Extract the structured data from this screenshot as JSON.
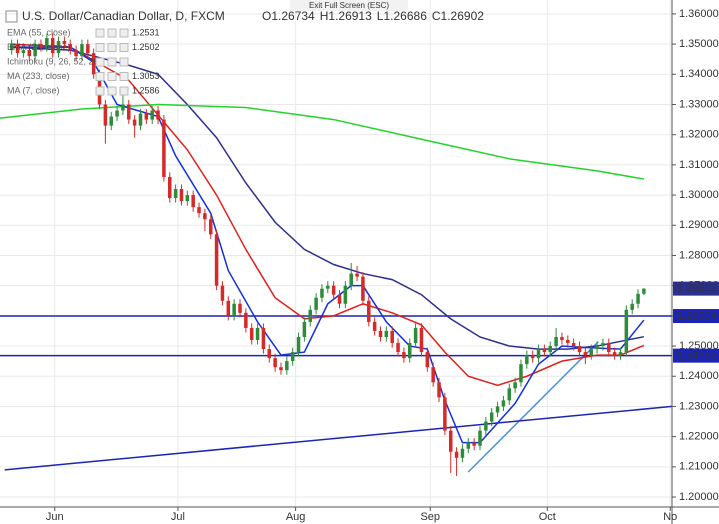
{
  "toolbar": {
    "exit": "Exit Full Screen (ESC)"
  },
  "chart_data": {
    "type": "candlestick",
    "title": "U.S. Dollar/Canadian Dollar, D, FXCM",
    "ohlc_prefixes": [
      "O",
      "H",
      "L",
      "C"
    ],
    "up_color": "#2e8b3a",
    "down_color": "#d42a2a",
    "candles": [
      [
        1.348,
        1.3515,
        1.3465,
        1.35
      ],
      [
        1.35,
        1.3515,
        1.3455,
        1.347
      ],
      [
        1.347,
        1.3495,
        1.3455,
        1.348
      ],
      [
        1.348,
        1.3495,
        1.3445,
        1.346
      ],
      [
        1.346,
        1.3515,
        1.3445,
        1.35
      ],
      [
        1.35,
        1.3515,
        1.3475,
        1.349
      ],
      [
        1.349,
        1.3535,
        1.3475,
        1.352
      ],
      [
        1.352,
        1.3535,
        1.3455,
        1.347
      ],
      [
        1.347,
        1.3525,
        1.3455,
        1.351
      ],
      [
        1.351,
        1.3525,
        1.3485,
        1.35
      ],
      [
        1.35,
        1.3515,
        1.3465,
        1.348
      ],
      [
        1.348,
        1.3495,
        1.3445,
        1.346
      ],
      [
        1.346,
        1.3515,
        1.3445,
        1.35
      ],
      [
        1.35,
        1.3515,
        1.3455,
        1.347
      ],
      [
        1.347,
        1.3485,
        1.3385,
        1.34
      ],
      [
        1.34,
        1.3415,
        1.3285,
        1.33
      ],
      [
        1.33,
        1.3315,
        1.317,
        1.323
      ],
      [
        1.323,
        1.3275,
        1.3215,
        1.326
      ],
      [
        1.326,
        1.3295,
        1.3245,
        1.328
      ],
      [
        1.328,
        1.333,
        1.3265,
        1.33
      ],
      [
        1.33,
        1.3315,
        1.3235,
        1.325
      ],
      [
        1.325,
        1.3265,
        1.319,
        1.323
      ],
      [
        1.323,
        1.3285,
        1.3215,
        1.327
      ],
      [
        1.327,
        1.3285,
        1.3235,
        1.325
      ],
      [
        1.325,
        1.3295,
        1.3235,
        1.328
      ],
      [
        1.328,
        1.3295,
        1.3235,
        1.325
      ],
      [
        1.325,
        1.3265,
        1.3045,
        1.306
      ],
      [
        1.306,
        1.3075,
        1.2975,
        1.299
      ],
      [
        1.299,
        1.3035,
        1.2975,
        1.302
      ],
      [
        1.302,
        1.3035,
        1.2965,
        1.298
      ],
      [
        1.298,
        1.3015,
        1.2965,
        1.3
      ],
      [
        1.3,
        1.3015,
        1.2945,
        1.296
      ],
      [
        1.296,
        1.2975,
        1.2925,
        1.294
      ],
      [
        1.294,
        1.2955,
        1.288,
        1.292
      ],
      [
        1.292,
        1.2935,
        1.2855,
        1.287
      ],
      [
        1.287,
        1.2885,
        1.2685,
        1.27
      ],
      [
        1.27,
        1.2715,
        1.2635,
        1.265
      ],
      [
        1.265,
        1.2665,
        1.2585,
        1.26
      ],
      [
        1.26,
        1.2655,
        1.2585,
        1.264
      ],
      [
        1.264,
        1.2655,
        1.2595,
        1.261
      ],
      [
        1.261,
        1.2625,
        1.2545,
        1.256
      ],
      [
        1.256,
        1.2575,
        1.2505,
        1.252
      ],
      [
        1.252,
        1.2575,
        1.2505,
        1.256
      ],
      [
        1.256,
        1.2575,
        1.2475,
        1.249
      ],
      [
        1.249,
        1.2505,
        1.2445,
        1.246
      ],
      [
        1.246,
        1.2475,
        1.2415,
        1.243
      ],
      [
        1.243,
        1.2445,
        1.2405,
        1.242
      ],
      [
        1.242,
        1.2465,
        1.2405,
        1.245
      ],
      [
        1.245,
        1.2495,
        1.2435,
        1.248
      ],
      [
        1.248,
        1.2545,
        1.2465,
        1.253
      ],
      [
        1.253,
        1.2595,
        1.2515,
        1.258
      ],
      [
        1.258,
        1.2635,
        1.2565,
        1.262
      ],
      [
        1.262,
        1.2675,
        1.2605,
        1.266
      ],
      [
        1.266,
        1.2705,
        1.2645,
        1.269
      ],
      [
        1.269,
        1.2715,
        1.2675,
        1.27
      ],
      [
        1.27,
        1.2715,
        1.2655,
        1.267
      ],
      [
        1.267,
        1.2685,
        1.2625,
        1.264
      ],
      [
        1.264,
        1.2715,
        1.2625,
        1.27
      ],
      [
        1.27,
        1.2775,
        1.2685,
        1.274
      ],
      [
        1.274,
        1.2765,
        1.2715,
        1.273
      ],
      [
        1.273,
        1.2745,
        1.2635,
        1.265
      ],
      [
        1.265,
        1.2665,
        1.2565,
        1.258
      ],
      [
        1.258,
        1.2595,
        1.2535,
        1.255
      ],
      [
        1.255,
        1.2565,
        1.2515,
        1.253
      ],
      [
        1.253,
        1.2565,
        1.2515,
        1.255
      ],
      [
        1.255,
        1.2565,
        1.2495,
        1.251
      ],
      [
        1.251,
        1.2525,
        1.2465,
        1.248
      ],
      [
        1.248,
        1.2495,
        1.2445,
        1.246
      ],
      [
        1.246,
        1.2525,
        1.2445,
        1.251
      ],
      [
        1.251,
        1.2575,
        1.2495,
        1.256
      ],
      [
        1.256,
        1.2575,
        1.2465,
        1.248
      ],
      [
        1.248,
        1.2495,
        1.2415,
        1.243
      ],
      [
        1.243,
        1.2445,
        1.2365,
        1.238
      ],
      [
        1.238,
        1.2395,
        1.2315,
        1.233
      ],
      [
        1.233,
        1.2345,
        1.2205,
        1.222
      ],
      [
        1.222,
        1.2235,
        1.208,
        1.215
      ],
      [
        1.215,
        1.2165,
        1.207,
        1.213
      ],
      [
        1.213,
        1.2175,
        1.2115,
        1.216
      ],
      [
        1.216,
        1.2195,
        1.2145,
        1.218
      ],
      [
        1.218,
        1.2195,
        1.2155,
        1.217
      ],
      [
        1.217,
        1.2235,
        1.2155,
        1.222
      ],
      [
        1.222,
        1.2265,
        1.2205,
        1.225
      ],
      [
        1.225,
        1.2295,
        1.2235,
        1.228
      ],
      [
        1.228,
        1.2315,
        1.2265,
        1.23
      ],
      [
        1.23,
        1.2335,
        1.2285,
        1.232
      ],
      [
        1.232,
        1.2375,
        1.2305,
        1.236
      ],
      [
        1.236,
        1.2395,
        1.2345,
        1.238
      ],
      [
        1.238,
        1.2455,
        1.2365,
        1.244
      ],
      [
        1.244,
        1.2485,
        1.2425,
        1.247
      ],
      [
        1.247,
        1.2485,
        1.2445,
        1.246
      ],
      [
        1.246,
        1.2505,
        1.2445,
        1.249
      ],
      [
        1.249,
        1.2505,
        1.2465,
        1.248
      ],
      [
        1.248,
        1.2515,
        1.2465,
        1.25
      ],
      [
        1.25,
        1.256,
        1.2485,
        1.253
      ],
      [
        1.253,
        1.2545,
        1.2505,
        1.252
      ],
      [
        1.252,
        1.2535,
        1.2495,
        1.251
      ],
      [
        1.251,
        1.2525,
        1.2485,
        1.25
      ],
      [
        1.25,
        1.2515,
        1.2465,
        1.248
      ],
      [
        1.248,
        1.2495,
        1.244,
        1.247
      ],
      [
        1.247,
        1.2505,
        1.2455,
        1.249
      ],
      [
        1.249,
        1.2515,
        1.2475,
        1.25
      ],
      [
        1.25,
        1.2525,
        1.2485,
        1.251
      ],
      [
        1.251,
        1.2525,
        1.2465,
        1.248
      ],
      [
        1.248,
        1.2495,
        1.2455,
        1.247
      ],
      [
        1.247,
        1.2495,
        1.2455,
        1.248
      ],
      [
        1.248,
        1.2635,
        1.2465,
        1.262
      ],
      [
        1.262,
        1.2655,
        1.2605,
        1.264
      ],
      [
        1.264,
        1.2688,
        1.2625,
        1.2673
      ],
      [
        1.26734,
        1.26913,
        1.26686,
        1.26902
      ]
    ],
    "series": [
      {
        "name": "EMA (55, close)",
        "color": "#2b2f8f",
        "x": [
          0,
          10,
          20,
          25,
          30,
          35,
          40,
          45,
          50,
          55,
          60,
          65,
          70,
          75,
          80,
          85,
          90,
          95,
          100,
          108
        ],
        "values": [
          1.349,
          1.348,
          1.343,
          1.34,
          1.33,
          1.319,
          1.304,
          1.291,
          1.282,
          1.277,
          1.274,
          1.272,
          1.267,
          1.259,
          1.253,
          1.25,
          1.249,
          1.249,
          1.25,
          1.2531
        ]
      },
      {
        "name": "EMA (21, close)",
        "color": "#e0201b",
        "x": [
          0,
          10,
          20,
          30,
          35,
          40,
          45,
          50,
          55,
          60,
          65,
          70,
          74,
          78,
          83,
          88,
          94,
          100,
          104,
          108
        ],
        "values": [
          1.35,
          1.349,
          1.338,
          1.315,
          1.3,
          1.282,
          1.266,
          1.259,
          1.26,
          1.264,
          1.261,
          1.257,
          1.248,
          1.24,
          1.237,
          1.24,
          1.245,
          1.247,
          1.247,
          1.2502
        ]
      },
      {
        "name": "MA (233, close)",
        "color": "#22d42a",
        "x": [
          -2,
          12,
          25,
          40,
          55,
          70,
          85,
          100,
          108
        ],
        "values": [
          1.3255,
          1.3285,
          1.33,
          1.329,
          1.325,
          1.3185,
          1.312,
          1.308,
          1.3053
        ]
      },
      {
        "name": "MA (7, close)",
        "color": "#1230e0",
        "x": [
          0,
          10,
          14,
          18,
          25,
          28,
          34,
          37,
          42,
          46,
          50,
          54,
          58,
          60,
          64,
          68,
          71,
          74,
          77,
          80,
          86,
          90,
          94,
          98,
          104,
          108
        ],
        "values": [
          1.349,
          1.349,
          1.344,
          1.33,
          1.326,
          1.313,
          1.294,
          1.275,
          1.258,
          1.247,
          1.248,
          1.264,
          1.27,
          1.27,
          1.258,
          1.25,
          1.249,
          1.232,
          1.218,
          1.218,
          1.231,
          1.244,
          1.25,
          1.2495,
          1.249,
          1.2586
        ]
      }
    ],
    "studies": [
      "Ichimoku (9, 26, 52, 26)"
    ],
    "trendlines": [
      {
        "color": "#4a8fdc",
        "x": [
          78,
          100.2
        ],
        "values": [
          1.2083,
          1.2514
        ]
      },
      {
        "color": "#1c24b8",
        "x": [
          -1.2,
          120.9
        ],
        "values": [
          1.209,
          1.2315
        ]
      }
    ],
    "hlines": [
      {
        "value": 1.25994,
        "color": "#1c24b8"
      },
      {
        "value": 1.24682,
        "color": "#1c24b8"
      }
    ],
    "xlim": [
      -2,
      112.8
    ],
    "xticks": [
      {
        "value": 7.35,
        "label": "Jun"
      },
      {
        "value": 28.4,
        "label": "Jul"
      },
      {
        "value": 48.5,
        "label": "Aug"
      },
      {
        "value": 71.5,
        "label": "Sep"
      },
      {
        "value": 91.5,
        "label": "Oct"
      },
      {
        "value": 112.5,
        "label": "No"
      }
    ],
    "ylim": [
      1.1967,
      1.3646
    ],
    "yticks": [
      {
        "value": 1.36,
        "label": "1.36000"
      },
      {
        "value": 1.35,
        "label": "1.35000"
      },
      {
        "value": 1.34,
        "label": "1.34000"
      },
      {
        "value": 1.33,
        "label": "1.33000"
      },
      {
        "value": 1.32,
        "label": "1.32000"
      },
      {
        "value": 1.31,
        "label": "1.31000"
      },
      {
        "value": 1.3,
        "label": "1.30000"
      },
      {
        "value": 1.29,
        "label": "1.29000"
      },
      {
        "value": 1.28,
        "label": "1.28000"
      },
      {
        "value": 1.27,
        "label": "1.27000"
      },
      {
        "value": 1.26,
        "label": "1.26000"
      },
      {
        "value": 1.25,
        "label": "1.25000"
      },
      {
        "value": 1.24,
        "label": "1.24000"
      },
      {
        "value": 1.23,
        "label": "1.23000"
      },
      {
        "value": 1.22,
        "label": "1.22000"
      },
      {
        "value": 1.21,
        "label": "1.21000"
      },
      {
        "value": 1.2,
        "label": "1.20000"
      }
    ],
    "grid": true
  }
}
